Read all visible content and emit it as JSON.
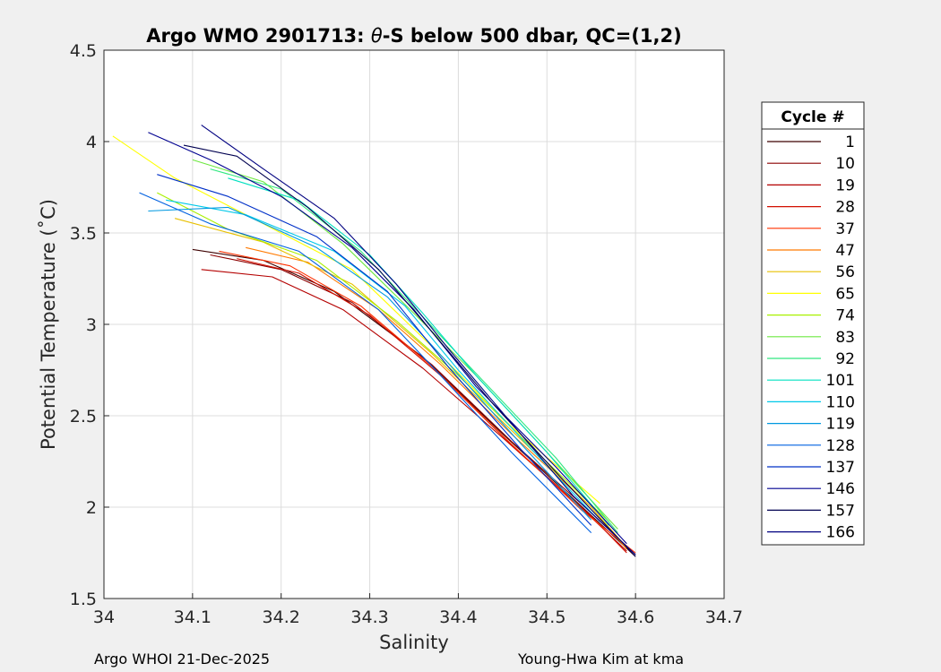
{
  "chart_data": {
    "type": "line",
    "title_prefix": "Argo WMO 2901713: ",
    "title_theta": "θ",
    "title_suffix": "-S below 500 dbar,  QC=(1,2)",
    "xlabel": "Salinity",
    "ylabel": "Potential Temperature (˚C)",
    "xlim": [
      34.0,
      34.7
    ],
    "ylim": [
      1.5,
      4.5
    ],
    "xticks": [
      "34",
      "34.1",
      "34.2",
      "34.3",
      "34.4",
      "34.5",
      "34.6",
      "34.7"
    ],
    "yticks": [
      "1.5",
      "2",
      "2.5",
      "3",
      "3.5",
      "4",
      "4.5"
    ],
    "grid": true,
    "legend": {
      "title": "Cycle #",
      "placement": "outside-right",
      "entries": [
        {
          "label": "1",
          "color": "#3d0000"
        },
        {
          "label": "10",
          "color": "#8c0000"
        },
        {
          "label": "19",
          "color": "#b40000"
        },
        {
          "label": "28",
          "color": "#d21000"
        },
        {
          "label": "37",
          "color": "#ff3000"
        },
        {
          "label": "47",
          "color": "#ff7a00"
        },
        {
          "label": "56",
          "color": "#e8c000"
        },
        {
          "label": "65",
          "color": "#ffff00"
        },
        {
          "label": "74",
          "color": "#a8f000"
        },
        {
          "label": "83",
          "color": "#6ee840"
        },
        {
          "label": "92",
          "color": "#30e880"
        },
        {
          "label": "101",
          "color": "#00e0c0"
        },
        {
          "label": "110",
          "color": "#00c8e8"
        },
        {
          "label": "119",
          "color": "#0098e0"
        },
        {
          "label": "128",
          "color": "#0060e0"
        },
        {
          "label": "137",
          "color": "#0030c8"
        },
        {
          "label": "146",
          "color": "#000090"
        },
        {
          "label": "157",
          "color": "#000050"
        },
        {
          "label": "166",
          "color": "#000080"
        }
      ]
    },
    "series": [
      {
        "color": "#3d0000",
        "points": [
          [
            34.1,
            3.41
          ],
          [
            34.18,
            3.35
          ],
          [
            34.26,
            3.18
          ],
          [
            34.36,
            2.82
          ],
          [
            34.45,
            2.4
          ],
          [
            34.54,
            2.0
          ],
          [
            34.6,
            1.73
          ]
        ]
      },
      {
        "color": "#8c0000",
        "points": [
          [
            34.12,
            3.38
          ],
          [
            34.2,
            3.3
          ],
          [
            34.28,
            3.12
          ],
          [
            34.37,
            2.78
          ],
          [
            34.46,
            2.36
          ],
          [
            34.55,
            1.97
          ],
          [
            34.6,
            1.74
          ]
        ]
      },
      {
        "color": "#b40000",
        "points": [
          [
            34.11,
            3.3
          ],
          [
            34.19,
            3.26
          ],
          [
            34.27,
            3.08
          ],
          [
            34.36,
            2.76
          ],
          [
            34.45,
            2.38
          ],
          [
            34.54,
            1.99
          ],
          [
            34.59,
            1.76
          ]
        ]
      },
      {
        "color": "#d21000",
        "points": [
          [
            34.15,
            3.36
          ],
          [
            34.22,
            3.28
          ],
          [
            34.3,
            3.05
          ],
          [
            34.38,
            2.72
          ],
          [
            34.46,
            2.34
          ],
          [
            34.55,
            1.95
          ],
          [
            34.59,
            1.75
          ]
        ]
      },
      {
        "color": "#ff3000",
        "points": [
          [
            34.13,
            3.4
          ],
          [
            34.21,
            3.32
          ],
          [
            34.29,
            3.1
          ],
          [
            34.37,
            2.77
          ],
          [
            34.45,
            2.39
          ],
          [
            34.54,
            1.98
          ],
          [
            34.6,
            1.75
          ]
        ]
      },
      {
        "color": "#ff7a00",
        "points": [
          [
            34.16,
            3.42
          ],
          [
            34.23,
            3.34
          ],
          [
            34.31,
            3.08
          ],
          [
            34.38,
            2.78
          ],
          [
            34.46,
            2.4
          ],
          [
            34.55,
            2.0
          ],
          [
            34.59,
            1.77
          ]
        ]
      },
      {
        "color": "#e8c000",
        "points": [
          [
            34.08,
            3.58
          ],
          [
            34.18,
            3.45
          ],
          [
            34.28,
            3.22
          ],
          [
            34.37,
            2.84
          ],
          [
            34.46,
            2.42
          ],
          [
            34.55,
            2.0
          ],
          [
            34.59,
            1.78
          ]
        ]
      },
      {
        "color": "#ffff00",
        "points": [
          [
            34.01,
            4.03
          ],
          [
            34.08,
            3.8
          ],
          [
            34.18,
            3.55
          ],
          [
            34.28,
            3.3
          ],
          [
            34.37,
            2.88
          ],
          [
            34.46,
            2.44
          ],
          [
            34.56,
            2.02
          ]
        ]
      },
      {
        "color": "#a8f000",
        "points": [
          [
            34.06,
            3.72
          ],
          [
            34.14,
            3.52
          ],
          [
            34.24,
            3.35
          ],
          [
            34.33,
            3.02
          ],
          [
            34.4,
            2.72
          ],
          [
            34.48,
            2.34
          ],
          [
            34.57,
            1.92
          ]
        ]
      },
      {
        "color": "#6ee840",
        "points": [
          [
            34.1,
            3.9
          ],
          [
            34.18,
            3.78
          ],
          [
            34.27,
            3.44
          ],
          [
            34.35,
            3.06
          ],
          [
            34.42,
            2.72
          ],
          [
            34.5,
            2.3
          ],
          [
            34.58,
            1.88
          ]
        ]
      },
      {
        "color": "#30e880",
        "points": [
          [
            34.12,
            3.85
          ],
          [
            34.2,
            3.74
          ],
          [
            34.29,
            3.4
          ],
          [
            34.36,
            3.04
          ],
          [
            34.43,
            2.68
          ],
          [
            34.51,
            2.27
          ],
          [
            34.58,
            1.86
          ]
        ]
      },
      {
        "color": "#00e0c0",
        "points": [
          [
            34.14,
            3.8
          ],
          [
            34.22,
            3.68
          ],
          [
            34.3,
            3.38
          ],
          [
            34.36,
            3.06
          ],
          [
            34.42,
            2.72
          ],
          [
            34.5,
            2.3
          ],
          [
            34.57,
            1.9
          ]
        ]
      },
      {
        "color": "#00c8e8",
        "points": [
          [
            34.07,
            3.68
          ],
          [
            34.16,
            3.6
          ],
          [
            34.26,
            3.4
          ],
          [
            34.34,
            3.1
          ],
          [
            34.4,
            2.75
          ],
          [
            34.48,
            2.33
          ],
          [
            34.56,
            1.92
          ]
        ]
      },
      {
        "color": "#0098e0",
        "points": [
          [
            34.05,
            3.62
          ],
          [
            34.14,
            3.64
          ],
          [
            34.24,
            3.42
          ],
          [
            34.32,
            3.15
          ],
          [
            34.39,
            2.78
          ],
          [
            34.47,
            2.35
          ],
          [
            34.55,
            1.93
          ]
        ]
      },
      {
        "color": "#0060e0",
        "points": [
          [
            34.04,
            3.72
          ],
          [
            34.12,
            3.55
          ],
          [
            34.22,
            3.4
          ],
          [
            34.31,
            3.08
          ],
          [
            34.38,
            2.72
          ],
          [
            34.46,
            2.3
          ],
          [
            34.55,
            1.86
          ]
        ]
      },
      {
        "color": "#0030c8",
        "points": [
          [
            34.06,
            3.82
          ],
          [
            34.14,
            3.7
          ],
          [
            34.24,
            3.48
          ],
          [
            34.32,
            3.18
          ],
          [
            34.39,
            2.76
          ],
          [
            34.47,
            2.32
          ],
          [
            34.55,
            1.9
          ]
        ]
      },
      {
        "color": "#000090",
        "points": [
          [
            34.05,
            4.05
          ],
          [
            34.12,
            3.9
          ],
          [
            34.2,
            3.7
          ],
          [
            34.28,
            3.42
          ],
          [
            34.35,
            3.08
          ],
          [
            34.42,
            2.66
          ],
          [
            34.51,
            2.22
          ],
          [
            34.59,
            1.8
          ]
        ]
      },
      {
        "color": "#000050",
        "points": [
          [
            34.09,
            3.98
          ],
          [
            34.15,
            3.92
          ],
          [
            34.23,
            3.64
          ],
          [
            34.31,
            3.3
          ],
          [
            34.37,
            2.96
          ],
          [
            34.44,
            2.56
          ],
          [
            34.52,
            2.14
          ],
          [
            34.6,
            1.73
          ]
        ]
      },
      {
        "color": "#000080",
        "points": [
          [
            34.11,
            4.09
          ],
          [
            34.18,
            3.85
          ],
          [
            34.26,
            3.58
          ],
          [
            34.33,
            3.22
          ],
          [
            34.39,
            2.86
          ],
          [
            34.46,
            2.46
          ],
          [
            34.53,
            2.06
          ],
          [
            34.6,
            1.74
          ]
        ]
      }
    ]
  },
  "footer": {
    "left": "Argo WHOI 21-Dec-2025",
    "right": "Young-Hwa Kim at kma"
  }
}
